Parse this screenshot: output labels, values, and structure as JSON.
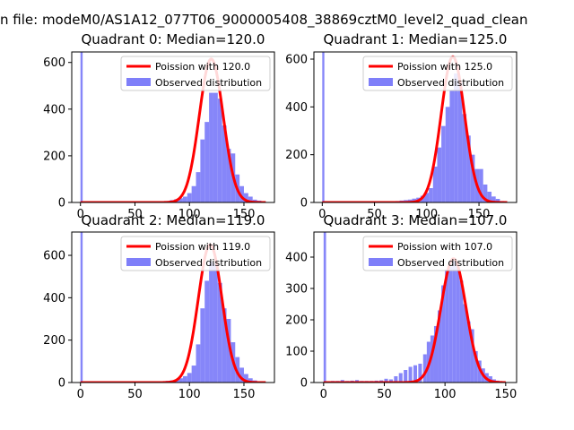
{
  "suptitle": "n file: modeM0/AS1A12_077T06_9000005408_38869cztM0_level2_quad_clean",
  "chart_data": [
    {
      "type": "bar",
      "title": "Quadrant 0: Median=120.0",
      "xlim": [
        -8,
        178
      ],
      "ylim": [
        0,
        645
      ],
      "xticks": [
        0,
        50,
        100,
        150
      ],
      "yticks": [
        0,
        200,
        400,
        600
      ],
      "legend": {
        "placement": "top-right",
        "poisson_label": "Poission with 120.0",
        "observed_label": "Observed distribution"
      },
      "series": [
        {
          "name": "Observed distribution",
          "type": "histogram",
          "color": "#7f7ff9",
          "bins": [
            [
              0,
              2,
              645
            ],
            [
              66,
              4,
              2
            ],
            [
              70,
              4,
              3
            ],
            [
              74,
              4,
              4
            ],
            [
              78,
              4,
              6
            ],
            [
              82,
              4,
              10
            ],
            [
              86,
              4,
              14
            ],
            [
              90,
              4,
              18
            ],
            [
              94,
              4,
              25
            ],
            [
              98,
              4,
              40
            ],
            [
              102,
              4,
              70
            ],
            [
              106,
              4,
              130
            ],
            [
              110,
              4,
              270
            ],
            [
              114,
              4,
              345
            ],
            [
              118,
              4,
              470
            ],
            [
              122,
              4,
              470
            ],
            [
              126,
              4,
              445
            ],
            [
              130,
              4,
              330
            ],
            [
              134,
              4,
              230
            ],
            [
              138,
              4,
              210
            ],
            [
              142,
              4,
              120
            ],
            [
              146,
              4,
              70
            ],
            [
              150,
              4,
              40
            ],
            [
              154,
              4,
              25
            ],
            [
              158,
              4,
              12
            ],
            [
              162,
              4,
              8
            ],
            [
              166,
              4,
              4
            ]
          ]
        },
        {
          "name": "Poission with 120.0",
          "type": "poisson",
          "mean": 120.0,
          "peak": 615,
          "xmin": 0,
          "xmax": 170,
          "color": "#ff0000"
        }
      ]
    },
    {
      "type": "bar",
      "title": "Quadrant 1: Median=125.0",
      "xlim": [
        -8,
        186
      ],
      "ylim": [
        0,
        630
      ],
      "xticks": [
        0,
        50,
        100,
        150
      ],
      "yticks": [
        0,
        200,
        400,
        600
      ],
      "legend": {
        "placement": "top-right",
        "poisson_label": "Poission with 125.0",
        "observed_label": "Observed distribution"
      },
      "series": [
        {
          "name": "Observed distribution",
          "type": "histogram",
          "color": "#7f7ff9",
          "bins": [
            [
              0,
              2,
              630
            ],
            [
              70,
              4,
              6
            ],
            [
              74,
              4,
              8
            ],
            [
              78,
              4,
              10
            ],
            [
              82,
              4,
              12
            ],
            [
              86,
              4,
              16
            ],
            [
              90,
              4,
              20
            ],
            [
              94,
              4,
              28
            ],
            [
              98,
              4,
              40
            ],
            [
              102,
              4,
              60
            ],
            [
              106,
              4,
              150
            ],
            [
              110,
              4,
              230
            ],
            [
              114,
              4,
              320
            ],
            [
              118,
              4,
              400
            ],
            [
              122,
              4,
              470
            ],
            [
              126,
              4,
              540
            ],
            [
              130,
              4,
              500
            ],
            [
              134,
              4,
              370
            ],
            [
              138,
              4,
              280
            ],
            [
              142,
              4,
              200
            ],
            [
              146,
              4,
              140
            ],
            [
              150,
              4,
              140
            ],
            [
              154,
              4,
              75
            ],
            [
              158,
              4,
              45
            ],
            [
              162,
              4,
              25
            ],
            [
              166,
              4,
              15
            ],
            [
              170,
              4,
              6
            ]
          ]
        },
        {
          "name": "Poission with 125.0",
          "type": "poisson",
          "mean": 125.0,
          "peak": 610,
          "xmin": 0,
          "xmax": 177,
          "color": "#ff0000"
        }
      ]
    },
    {
      "type": "bar",
      "title": "Quadrant 2: Median=119.0",
      "xlim": [
        -8,
        178
      ],
      "ylim": [
        0,
        710
      ],
      "xticks": [
        0,
        50,
        100,
        150
      ],
      "yticks": [
        0,
        200,
        400,
        600
      ],
      "legend": {
        "placement": "top-right",
        "poisson_label": "Poission with 119.0",
        "observed_label": "Observed distribution"
      },
      "series": [
        {
          "name": "Observed distribution",
          "type": "histogram",
          "color": "#7f7ff9",
          "bins": [
            [
              0,
              2,
              710
            ],
            [
              70,
              4,
              4
            ],
            [
              74,
              4,
              6
            ],
            [
              78,
              4,
              8
            ],
            [
              82,
              4,
              10
            ],
            [
              86,
              4,
              12
            ],
            [
              90,
              4,
              20
            ],
            [
              94,
              4,
              30
            ],
            [
              98,
              4,
              45
            ],
            [
              102,
              4,
              80
            ],
            [
              106,
              4,
              180
            ],
            [
              110,
              4,
              350
            ],
            [
              114,
              4,
              480
            ],
            [
              118,
              4,
              570
            ],
            [
              122,
              4,
              560
            ],
            [
              126,
              4,
              470
            ],
            [
              130,
              4,
              350
            ],
            [
              134,
              4,
              300
            ],
            [
              138,
              4,
              190
            ],
            [
              142,
              4,
              120
            ],
            [
              146,
              4,
              70
            ],
            [
              150,
              4,
              40
            ],
            [
              154,
              4,
              20
            ],
            [
              158,
              4,
              10
            ],
            [
              162,
              4,
              5
            ]
          ]
        },
        {
          "name": "Poission with 119.0",
          "type": "poisson",
          "mean": 119.0,
          "peak": 650,
          "xmin": 0,
          "xmax": 170,
          "color": "#ff0000"
        }
      ]
    },
    {
      "type": "bar",
      "title": "Quadrant 3: Median=107.0",
      "xlim": [
        -8,
        159
      ],
      "ylim": [
        0,
        480
      ],
      "xticks": [
        0,
        50,
        100,
        150
      ],
      "yticks": [
        0,
        100,
        200,
        300,
        400
      ],
      "legend": {
        "placement": "top-right",
        "poisson_label": "Poission with 107.0",
        "observed_label": "Observed distribution"
      },
      "series": [
        {
          "name": "Observed distribution",
          "type": "histogram",
          "color": "#7f7ff9",
          "bins": [
            [
              0,
              2,
              480
            ],
            [
              6,
              3,
              5
            ],
            [
              10,
              3,
              5
            ],
            [
              14,
              3,
              8
            ],
            [
              18,
              3,
              5
            ],
            [
              22,
              3,
              6
            ],
            [
              26,
              3,
              8
            ],
            [
              30,
              3,
              5
            ],
            [
              34,
              3,
              5
            ],
            [
              38,
              3,
              5
            ],
            [
              42,
              3,
              6
            ],
            [
              46,
              3,
              7
            ],
            [
              50,
              3,
              12
            ],
            [
              54,
              3,
              10
            ],
            [
              58,
              3,
              20
            ],
            [
              62,
              3,
              30
            ],
            [
              66,
              3,
              40
            ],
            [
              70,
              3,
              50
            ],
            [
              74,
              3,
              55
            ],
            [
              78,
              3,
              60
            ],
            [
              82,
              3,
              90
            ],
            [
              85,
              3,
              130
            ],
            [
              88,
              3,
              150
            ],
            [
              91,
              3,
              180
            ],
            [
              94,
              3,
              230
            ],
            [
              97,
              3,
              310
            ],
            [
              100,
              3,
              360
            ],
            [
              103,
              3,
              370
            ],
            [
              106,
              3,
              395
            ],
            [
              109,
              3,
              370
            ],
            [
              112,
              3,
              325
            ],
            [
              115,
              3,
              250
            ],
            [
              118,
              3,
              195
            ],
            [
              121,
              3,
              170
            ],
            [
              124,
              3,
              100
            ],
            [
              127,
              3,
              70
            ],
            [
              130,
              3,
              45
            ],
            [
              133,
              3,
              30
            ],
            [
              136,
              3,
              20
            ],
            [
              139,
              3,
              10
            ],
            [
              142,
              3,
              6
            ]
          ]
        },
        {
          "name": "Poission with 107.0",
          "type": "poisson",
          "mean": 107.0,
          "peak": 395,
          "xmin": 0,
          "xmax": 150,
          "color": "#ff0000"
        }
      ]
    }
  ]
}
